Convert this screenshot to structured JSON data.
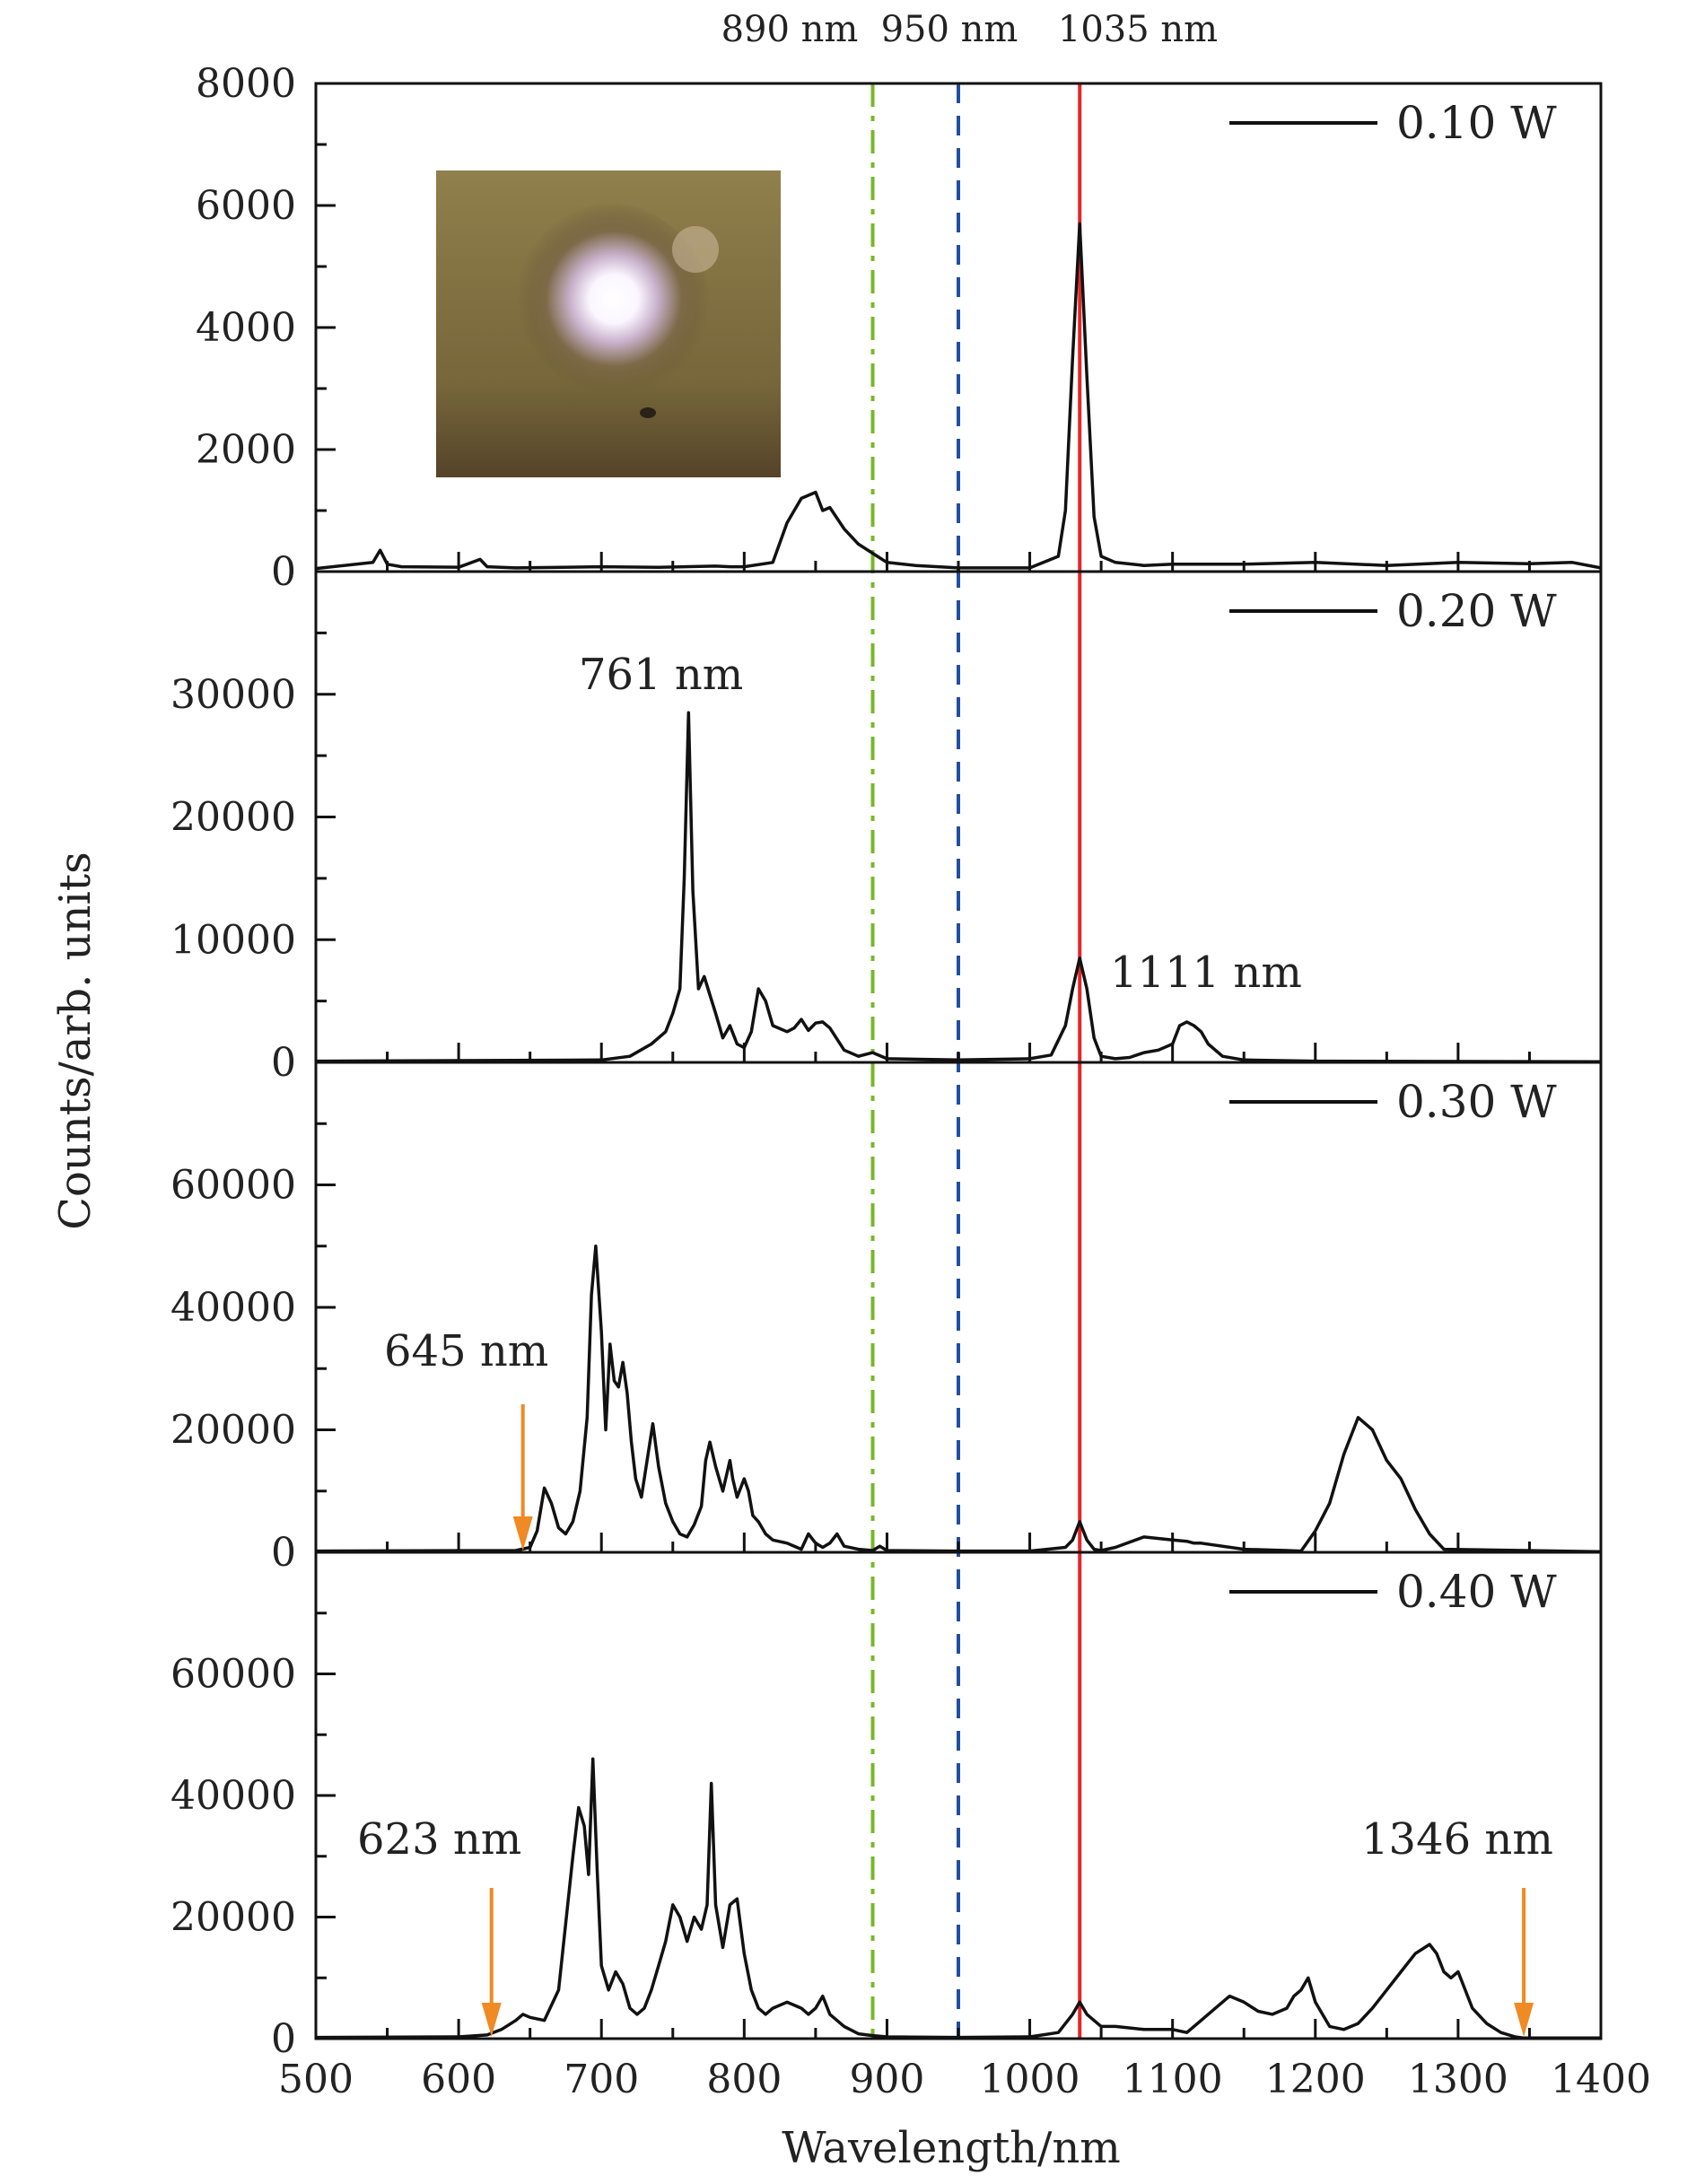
{
  "chart_data": [
    {
      "type": "line",
      "legend": "0.10 W",
      "ylim": [
        0,
        8000
      ],
      "yticks": [
        "0",
        "2000",
        "4000",
        "6000",
        "8000"
      ],
      "has_inset_photo": true,
      "series": [
        {
          "name": "0.10 W",
          "x": [
            500,
            540,
            545,
            550,
            560,
            600,
            615,
            620,
            640,
            700,
            740,
            780,
            790,
            800,
            820,
            830,
            840,
            850,
            855,
            860,
            870,
            880,
            890,
            900,
            920,
            950,
            1000,
            1020,
            1025,
            1030,
            1035,
            1040,
            1045,
            1050,
            1060,
            1080,
            1100,
            1150,
            1200,
            1250,
            1300,
            1350,
            1380,
            1400
          ],
          "y": [
            50,
            150,
            350,
            120,
            80,
            70,
            200,
            80,
            60,
            80,
            70,
            90,
            80,
            80,
            150,
            800,
            1200,
            1300,
            1000,
            1050,
            700,
            450,
            300,
            150,
            100,
            60,
            60,
            250,
            1000,
            3500,
            5700,
            3200,
            900,
            250,
            150,
            100,
            120,
            120,
            150,
            100,
            150,
            130,
            150,
            60
          ]
        }
      ]
    },
    {
      "type": "line",
      "legend": "0.20 W",
      "ylim": [
        0,
        40000
      ],
      "yticks": [
        "0",
        "10000",
        "20000",
        "30000"
      ],
      "annotations": [
        "761 nm",
        "1111 nm"
      ],
      "series": [
        {
          "name": "0.20 W",
          "x": [
            500,
            700,
            720,
            735,
            745,
            750,
            755,
            758,
            761,
            764,
            768,
            772,
            776,
            780,
            785,
            790,
            795,
            800,
            805,
            810,
            815,
            820,
            830,
            835,
            840,
            845,
            850,
            855,
            860,
            870,
            880,
            890,
            900,
            950,
            1000,
            1015,
            1025,
            1030,
            1035,
            1040,
            1045,
            1050,
            1060,
            1070,
            1080,
            1090,
            1100,
            1105,
            1110,
            1115,
            1120,
            1125,
            1135,
            1150,
            1200,
            1400
          ],
          "y": [
            100,
            200,
            500,
            1500,
            2500,
            4000,
            6000,
            15000,
            28500,
            14000,
            6000,
            7000,
            5500,
            4000,
            2000,
            3000,
            1500,
            1200,
            2500,
            6000,
            5000,
            3000,
            2500,
            2800,
            3500,
            2600,
            3200,
            3300,
            2800,
            1000,
            500,
            800,
            300,
            200,
            300,
            600,
            3000,
            6000,
            8500,
            6000,
            2000,
            500,
            300,
            400,
            800,
            1000,
            1500,
            3000,
            3300,
            3000,
            2500,
            1500,
            500,
            200,
            100,
            50
          ]
        }
      ]
    },
    {
      "type": "line",
      "legend": "0.30 W",
      "ylim": [
        0,
        80000
      ],
      "yticks": [
        "0",
        "20000",
        "40000",
        "60000"
      ],
      "annotations": [
        "645 nm"
      ],
      "series": [
        {
          "name": "0.30 W",
          "x": [
            500,
            640,
            650,
            655,
            660,
            665,
            670,
            675,
            680,
            685,
            690,
            693,
            696,
            700,
            703,
            706,
            709,
            712,
            715,
            718,
            721,
            724,
            728,
            732,
            736,
            740,
            745,
            750,
            755,
            760,
            765,
            770,
            773,
            776,
            780,
            785,
            790,
            792,
            795,
            800,
            803,
            806,
            810,
            815,
            820,
            830,
            840,
            845,
            850,
            855,
            860,
            865,
            870,
            880,
            890,
            895,
            900,
            950,
            1000,
            1025,
            1030,
            1035,
            1040,
            1045,
            1050,
            1060,
            1080,
            1100,
            1110,
            1115,
            1120,
            1150,
            1180,
            1190,
            1200,
            1210,
            1220,
            1230,
            1240,
            1250,
            1260,
            1270,
            1280,
            1290,
            1400
          ],
          "y": [
            200,
            300,
            800,
            3500,
            10500,
            8000,
            4000,
            3000,
            5000,
            10000,
            22000,
            42000,
            50000,
            36000,
            20000,
            34000,
            28000,
            27000,
            31000,
            26000,
            18000,
            12000,
            9000,
            15000,
            21000,
            14000,
            8000,
            5000,
            3000,
            2500,
            4500,
            7500,
            15000,
            18000,
            14000,
            10000,
            15000,
            12000,
            9000,
            12000,
            10000,
            6000,
            5000,
            3000,
            2000,
            1500,
            500,
            3000,
            1500,
            800,
            1500,
            3000,
            1000,
            500,
            300,
            1000,
            300,
            200,
            200,
            800,
            2000,
            5000,
            2000,
            500,
            300,
            800,
            2500,
            2000,
            1800,
            1500,
            1500,
            500,
            300,
            200,
            3500,
            8000,
            16000,
            22000,
            20000,
            15000,
            12000,
            7000,
            3000,
            500,
            100
          ]
        }
      ]
    },
    {
      "type": "line",
      "legend": "0.40 W",
      "ylim": [
        0,
        80000
      ],
      "yticks": [
        "0",
        "20000",
        "40000",
        "60000"
      ],
      "annotations": [
        "623 nm",
        "1346 nm"
      ],
      "series": [
        {
          "name": "0.40 W",
          "x": [
            500,
            600,
            620,
            630,
            640,
            645,
            650,
            660,
            670,
            680,
            684,
            688,
            691,
            694,
            697,
            700,
            705,
            710,
            715,
            720,
            725,
            730,
            735,
            740,
            745,
            750,
            755,
            760,
            765,
            770,
            774,
            777,
            780,
            785,
            790,
            795,
            800,
            805,
            810,
            815,
            820,
            830,
            840,
            845,
            850,
            855,
            860,
            870,
            880,
            890,
            900,
            950,
            1000,
            1020,
            1030,
            1035,
            1040,
            1050,
            1060,
            1080,
            1100,
            1110,
            1120,
            1130,
            1140,
            1150,
            1160,
            1170,
            1180,
            1185,
            1190,
            1195,
            1200,
            1210,
            1220,
            1230,
            1240,
            1250,
            1260,
            1270,
            1280,
            1285,
            1290,
            1295,
            1300,
            1310,
            1320,
            1330,
            1340,
            1346,
            1400
          ],
          "y": [
            200,
            300,
            600,
            1500,
            3000,
            4000,
            3500,
            3000,
            8000,
            30000,
            38000,
            35000,
            27000,
            46000,
            28000,
            12000,
            8000,
            11000,
            9000,
            5000,
            4000,
            5000,
            8000,
            12000,
            16000,
            22000,
            20000,
            16000,
            20000,
            18000,
            22000,
            42000,
            22000,
            15000,
            22000,
            23000,
            14000,
            8000,
            5000,
            4000,
            5000,
            6000,
            5000,
            4000,
            5000,
            7000,
            4000,
            2000,
            800,
            500,
            300,
            200,
            300,
            1000,
            4000,
            6000,
            4000,
            2000,
            2000,
            1500,
            1500,
            1000,
            3000,
            5000,
            7000,
            6000,
            4500,
            4000,
            5000,
            7000,
            8000,
            10000,
            6000,
            2000,
            1500,
            2500,
            5000,
            8000,
            11000,
            14000,
            15500,
            14000,
            11000,
            10000,
            11000,
            5000,
            2500,
            1000,
            300,
            100,
            100
          ]
        }
      ]
    }
  ],
  "top_labels": [
    "890 nm",
    "950 nm",
    "1035 nm"
  ],
  "xlabel": "Wavelength/nm",
  "ylabel": "Counts/arb. units",
  "xlim": [
    500,
    1400
  ],
  "xticks": [
    "500",
    "600",
    "700",
    "800",
    "900",
    "1000",
    "1100",
    "1200",
    "1300",
    "1400"
  ],
  "reference_lines": [
    {
      "x": 890,
      "style": "dash-dot",
      "color": "#77b82a"
    },
    {
      "x": 950,
      "style": "dashed",
      "color": "#1f4fa3"
    },
    {
      "x": 1035,
      "style": "solid",
      "color": "#e3262a"
    }
  ],
  "arrows": [
    {
      "panel": 2,
      "x": 645,
      "color": "#f08a24"
    },
    {
      "panel": 3,
      "x": 623,
      "color": "#f08a24"
    },
    {
      "panel": 3,
      "x": 1346,
      "color": "#f08a24"
    }
  ]
}
